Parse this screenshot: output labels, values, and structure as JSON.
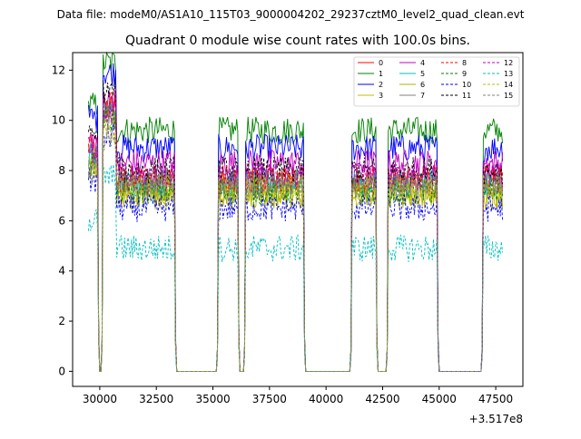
{
  "chart_data": {
    "type": "line",
    "suptitle": "Data file: modeM0/AS1A10_115T03_9000004202_29237cztM0_level2_quad_clean.evt",
    "title": "Quadrant 0 module wise count rates with 100.0s bins.",
    "xlabel": "",
    "ylabel": "",
    "x_offset_label": "+3.517e8",
    "xlim": [
      28800,
      48700
    ],
    "ylim": [
      -0.6,
      12.7
    ],
    "xticks": [
      30000,
      32500,
      35000,
      37500,
      40000,
      42500,
      45000,
      47500
    ],
    "xtick_labels": [
      "30000",
      "32500",
      "35000",
      "37500",
      "40000",
      "42500",
      "45000",
      "47500"
    ],
    "yticks": [
      0,
      2,
      4,
      6,
      8,
      10,
      12
    ],
    "ytick_labels": [
      "0",
      "2",
      "4",
      "6",
      "8",
      "10",
      "12"
    ],
    "grid": false,
    "legend_position": "top-right",
    "legend_columns": 4,
    "series": [
      {
        "name": "0",
        "color": "#ff0000",
        "dash": "solid",
        "level": 7.7,
        "start": 8.9
      },
      {
        "name": "1",
        "color": "#008000",
        "dash": "solid",
        "level": 9.6,
        "start": 10.6
      },
      {
        "name": "2",
        "color": "#0000ff",
        "dash": "solid",
        "level": 8.9,
        "start": 10.1
      },
      {
        "name": "3",
        "color": "#bfbf00",
        "dash": "solid",
        "level": 7.1,
        "start": 8.5
      },
      {
        "name": "4",
        "color": "#bf00bf",
        "dash": "solid",
        "level": 8.3,
        "start": 9.2
      },
      {
        "name": "5",
        "color": "#00bfbf",
        "dash": "solid",
        "level": 7.5,
        "start": 8.6
      },
      {
        "name": "6",
        "color": "#b0b000",
        "dash": "solid",
        "level": 7.0,
        "start": 8.2
      },
      {
        "name": "7",
        "color": "#808080",
        "dash": "solid",
        "level": 7.4,
        "start": 8.4
      },
      {
        "name": "8",
        "color": "#ff0000",
        "dash": "dashed",
        "level": 7.6,
        "start": 8.8
      },
      {
        "name": "9",
        "color": "#008000",
        "dash": "dashed",
        "level": 7.2,
        "start": 8.3
      },
      {
        "name": "10",
        "color": "#0000ff",
        "dash": "dashed",
        "level": 6.5,
        "start": 7.6
      },
      {
        "name": "11",
        "color": "#000000",
        "dash": "dashed",
        "level": 8.0,
        "start": 9.3
      },
      {
        "name": "12",
        "color": "#bf00bf",
        "dash": "dashed",
        "level": 7.8,
        "start": 8.7
      },
      {
        "name": "13",
        "color": "#00bfbf",
        "dash": "dashed",
        "level": 4.9,
        "start": 6.0
      },
      {
        "name": "14",
        "color": "#bfbf00",
        "dash": "dashed",
        "level": 7.3,
        "start": 8.0
      },
      {
        "name": "15",
        "color": "#808080",
        "dash": "dashed",
        "level": 7.5,
        "start": 7.9
      }
    ],
    "segments": [
      {
        "x_start": 29500,
        "x_end": 29950,
        "active": true
      },
      {
        "x_start": 30000,
        "x_end": 30050,
        "active": false
      },
      {
        "x_start": 30100,
        "x_end": 33350,
        "active": true
      },
      {
        "x_start": 33400,
        "x_end": 35150,
        "active": false
      },
      {
        "x_start": 35200,
        "x_end": 36150,
        "active": true
      },
      {
        "x_start": 36200,
        "x_end": 36350,
        "active": false
      },
      {
        "x_start": 36400,
        "x_end": 39050,
        "active": true
      },
      {
        "x_start": 39100,
        "x_end": 41050,
        "active": false
      },
      {
        "x_start": 41100,
        "x_end": 42250,
        "active": true
      },
      {
        "x_start": 42300,
        "x_end": 42650,
        "active": false
      },
      {
        "x_start": 42700,
        "x_end": 44950,
        "active": true
      },
      {
        "x_start": 45000,
        "x_end": 46850,
        "active": false
      },
      {
        "x_start": 46900,
        "x_end": 47800,
        "active": true
      }
    ]
  }
}
